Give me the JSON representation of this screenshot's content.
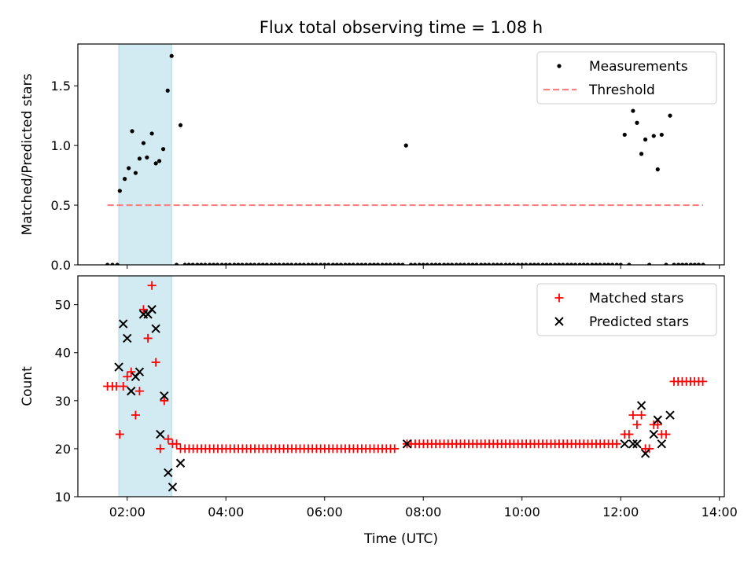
{
  "figure_title": "Flux total observing time = 1.08 h",
  "colors": {
    "shade": "#add8e6",
    "measurement": "#000000",
    "threshold": "#ff7f7f",
    "matched": "#ff0000",
    "predicted": "#000000"
  },
  "chart_data": [
    {
      "type": "scatter",
      "title": "Flux total observing time = 1.08 h",
      "xlabel": "",
      "ylabel": "Matched/Predicted stars",
      "x_unit": "hours (UTC)",
      "xlim": [
        1.0,
        14.1
      ],
      "ylim": [
        0.0,
        1.85
      ],
      "yticks": [
        "0.0",
        "0.5",
        "1.0",
        "1.5"
      ],
      "shaded_interval": [
        1.83,
        2.9
      ],
      "legend": {
        "placement": "top-right",
        "entries": [
          "Measurements",
          "Threshold"
        ]
      },
      "series": [
        {
          "name": "Measurements",
          "marker": "dot",
          "points": [
            [
              1.6,
              0
            ],
            [
              1.7,
              0
            ],
            [
              1.8,
              0
            ],
            [
              1.85,
              0.62
            ],
            [
              1.95,
              0.72
            ],
            [
              2.03,
              0.81
            ],
            [
              2.1,
              1.12
            ],
            [
              2.17,
              0.77
            ],
            [
              2.25,
              0.89
            ],
            [
              2.33,
              1.02
            ],
            [
              2.4,
              0.9
            ],
            [
              2.5,
              1.1
            ],
            [
              2.58,
              0.85
            ],
            [
              2.65,
              0.87
            ],
            [
              2.73,
              0.97
            ],
            [
              2.82,
              1.46
            ],
            [
              2.9,
              1.75
            ],
            [
              3.0,
              0
            ],
            [
              3.08,
              1.17
            ],
            [
              3.17,
              0
            ],
            [
              3.25,
              0
            ],
            [
              3.33,
              0
            ],
            [
              3.42,
              0
            ],
            [
              3.5,
              0
            ],
            [
              3.58,
              0
            ],
            [
              3.67,
              0
            ],
            [
              3.75,
              0
            ],
            [
              3.83,
              0
            ],
            [
              3.92,
              0
            ],
            [
              4.0,
              0
            ],
            [
              4.08,
              0
            ],
            [
              4.17,
              0
            ],
            [
              4.25,
              0
            ],
            [
              4.33,
              0
            ],
            [
              4.42,
              0
            ],
            [
              4.5,
              0
            ],
            [
              4.58,
              0
            ],
            [
              4.67,
              0
            ],
            [
              4.75,
              0
            ],
            [
              4.83,
              0
            ],
            [
              4.92,
              0
            ],
            [
              5.0,
              0
            ],
            [
              5.08,
              0
            ],
            [
              5.17,
              0
            ],
            [
              5.25,
              0
            ],
            [
              5.33,
              0
            ],
            [
              5.42,
              0
            ],
            [
              5.5,
              0
            ],
            [
              5.58,
              0
            ],
            [
              5.67,
              0
            ],
            [
              5.75,
              0
            ],
            [
              5.83,
              0
            ],
            [
              5.92,
              0
            ],
            [
              6.0,
              0
            ],
            [
              6.08,
              0
            ],
            [
              6.17,
              0
            ],
            [
              6.25,
              0
            ],
            [
              6.33,
              0
            ],
            [
              6.42,
              0
            ],
            [
              6.5,
              0
            ],
            [
              6.58,
              0
            ],
            [
              6.67,
              0
            ],
            [
              6.75,
              0
            ],
            [
              6.83,
              0
            ],
            [
              6.92,
              0
            ],
            [
              7.0,
              0
            ],
            [
              7.08,
              0
            ],
            [
              7.17,
              0
            ],
            [
              7.25,
              0
            ],
            [
              7.33,
              0
            ],
            [
              7.42,
              0
            ],
            [
              7.5,
              0
            ],
            [
              7.58,
              0
            ],
            [
              7.65,
              1.0
            ],
            [
              7.75,
              0
            ],
            [
              7.83,
              0
            ],
            [
              7.92,
              0
            ],
            [
              8.0,
              0
            ],
            [
              8.08,
              0
            ],
            [
              8.17,
              0
            ],
            [
              8.25,
              0
            ],
            [
              8.33,
              0
            ],
            [
              8.42,
              0
            ],
            [
              8.5,
              0
            ],
            [
              8.58,
              0
            ],
            [
              8.67,
              0
            ],
            [
              8.75,
              0
            ],
            [
              8.83,
              0
            ],
            [
              8.92,
              0
            ],
            [
              9.0,
              0
            ],
            [
              9.08,
              0
            ],
            [
              9.17,
              0
            ],
            [
              9.25,
              0
            ],
            [
              9.33,
              0
            ],
            [
              9.42,
              0
            ],
            [
              9.5,
              0
            ],
            [
              9.58,
              0
            ],
            [
              9.67,
              0
            ],
            [
              9.75,
              0
            ],
            [
              9.83,
              0
            ],
            [
              9.92,
              0
            ],
            [
              10.0,
              0
            ],
            [
              10.08,
              0
            ],
            [
              10.17,
              0
            ],
            [
              10.25,
              0
            ],
            [
              10.33,
              0
            ],
            [
              10.42,
              0
            ],
            [
              10.5,
              0
            ],
            [
              10.58,
              0
            ],
            [
              10.67,
              0
            ],
            [
              10.75,
              0
            ],
            [
              10.83,
              0
            ],
            [
              10.92,
              0
            ],
            [
              11.0,
              0
            ],
            [
              11.08,
              0
            ],
            [
              11.17,
              0
            ],
            [
              11.25,
              0
            ],
            [
              11.33,
              0
            ],
            [
              11.42,
              0
            ],
            [
              11.5,
              0
            ],
            [
              11.58,
              0
            ],
            [
              11.67,
              0
            ],
            [
              11.75,
              0
            ],
            [
              11.83,
              0
            ],
            [
              11.92,
              0
            ],
            [
              12.0,
              0
            ],
            [
              12.08,
              1.09
            ],
            [
              12.17,
              0
            ],
            [
              12.25,
              1.29
            ],
            [
              12.33,
              1.19
            ],
            [
              12.42,
              0.93
            ],
            [
              12.5,
              1.05
            ],
            [
              12.58,
              0
            ],
            [
              12.67,
              1.08
            ],
            [
              12.75,
              0.8
            ],
            [
              12.83,
              1.09
            ],
            [
              12.92,
              0
            ],
            [
              13.0,
              1.25
            ],
            [
              13.08,
              0
            ],
            [
              13.17,
              0
            ],
            [
              13.25,
              0
            ],
            [
              13.33,
              0
            ],
            [
              13.42,
              0
            ],
            [
              13.5,
              0
            ],
            [
              13.58,
              0
            ],
            [
              13.67,
              0
            ]
          ]
        },
        {
          "name": "Threshold",
          "style": "dashed",
          "x": [
            1.6,
            13.67
          ],
          "y": [
            0.5,
            0.5
          ]
        }
      ]
    },
    {
      "type": "scatter",
      "title": "",
      "xlabel": "Time (UTC)",
      "ylabel": "Count",
      "x_unit": "hours (UTC)",
      "xlim": [
        1.0,
        14.1
      ],
      "ylim": [
        10,
        56
      ],
      "xticks": [
        "02:00",
        "04:00",
        "06:00",
        "08:00",
        "10:00",
        "12:00",
        "14:00"
      ],
      "yticks": [
        "10",
        "20",
        "30",
        "40",
        "50"
      ],
      "shaded_interval": [
        1.83,
        2.9
      ],
      "legend": {
        "placement": "top-right",
        "entries": [
          "Matched stars",
          "Predicted stars"
        ]
      },
      "series": [
        {
          "name": "Matched stars",
          "marker": "plus",
          "points": [
            [
              1.6,
              33
            ],
            [
              1.7,
              33
            ],
            [
              1.78,
              33
            ],
            [
              1.85,
              23
            ],
            [
              1.92,
              33
            ],
            [
              2.0,
              35
            ],
            [
              2.08,
              36
            ],
            [
              2.17,
              27
            ],
            [
              2.25,
              32
            ],
            [
              2.33,
              49
            ],
            [
              2.42,
              43
            ],
            [
              2.5,
              54
            ],
            [
              2.58,
              38
            ],
            [
              2.67,
              20
            ],
            [
              2.75,
              30
            ],
            [
              2.83,
              22
            ],
            [
              2.92,
              21
            ],
            [
              3.0,
              21
            ],
            [
              3.08,
              20
            ]
          ],
          "flat_runs": [
            {
              "from": 3.17,
              "to": 7.5,
              "step": 0.0833,
              "y": 20
            },
            {
              "from": 7.67,
              "to": 12.0,
              "step": 0.0833,
              "y": 21
            },
            {
              "from": 13.08,
              "to": 13.67,
              "step": 0.0833,
              "y": 34
            }
          ],
          "extra_points": [
            [
              12.08,
              23
            ],
            [
              12.17,
              23
            ],
            [
              12.25,
              27
            ],
            [
              12.33,
              25
            ],
            [
              12.42,
              27
            ],
            [
              12.5,
              20
            ],
            [
              12.58,
              20
            ],
            [
              12.67,
              25
            ],
            [
              12.75,
              25
            ],
            [
              12.83,
              23
            ],
            [
              12.92,
              23
            ]
          ]
        },
        {
          "name": "Predicted stars",
          "marker": "x",
          "points": [
            [
              1.83,
              37
            ],
            [
              1.92,
              46
            ],
            [
              2.0,
              43
            ],
            [
              2.08,
              32
            ],
            [
              2.17,
              35
            ],
            [
              2.25,
              36
            ],
            [
              2.33,
              48
            ],
            [
              2.42,
              48
            ],
            [
              2.5,
              49
            ],
            [
              2.58,
              45
            ],
            [
              2.67,
              23
            ],
            [
              2.75,
              31
            ],
            [
              2.83,
              15
            ],
            [
              2.92,
              12
            ],
            [
              3.08,
              17
            ],
            [
              7.67,
              21
            ],
            [
              12.08,
              21
            ],
            [
              12.25,
              21
            ],
            [
              12.33,
              21
            ],
            [
              12.42,
              29
            ],
            [
              12.5,
              19
            ],
            [
              12.67,
              23
            ],
            [
              12.75,
              26
            ],
            [
              12.83,
              21
            ],
            [
              13.0,
              27
            ]
          ]
        }
      ]
    }
  ]
}
